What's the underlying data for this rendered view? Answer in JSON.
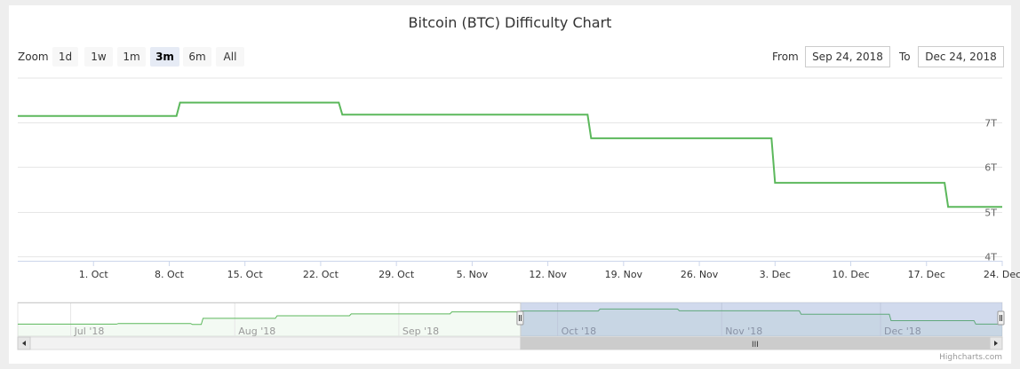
{
  "chart_data": {
    "type": "line",
    "title": "Bitcoin (BTC) Difficulty Chart",
    "xlabel": "",
    "ylabel": "",
    "y_unit": "T",
    "ylim": [
      3.9,
      8.0
    ],
    "y_ticks": [
      {
        "value": 4,
        "label": "4T"
      },
      {
        "value": 5,
        "label": "5T"
      },
      {
        "value": 6,
        "label": "6T"
      },
      {
        "value": 7,
        "label": "7T"
      }
    ],
    "x_range": [
      "2018-09-24",
      "2018-12-24"
    ],
    "x_ticks": [
      {
        "date": "2018-10-01",
        "label": "1. Oct"
      },
      {
        "date": "2018-10-08",
        "label": "8. Oct"
      },
      {
        "date": "2018-10-15",
        "label": "15. Oct"
      },
      {
        "date": "2018-10-22",
        "label": "22. Oct"
      },
      {
        "date": "2018-10-29",
        "label": "29. Oct"
      },
      {
        "date": "2018-11-05",
        "label": "5. Nov"
      },
      {
        "date": "2018-11-12",
        "label": "12. Nov"
      },
      {
        "date": "2018-11-19",
        "label": "19. Nov"
      },
      {
        "date": "2018-11-26",
        "label": "26. Nov"
      },
      {
        "date": "2018-12-03",
        "label": "3. Dec"
      },
      {
        "date": "2018-12-10",
        "label": "10. Dec"
      },
      {
        "date": "2018-12-17",
        "label": "17. Dec"
      },
      {
        "date": "2018-12-24",
        "label": "24. Dec"
      }
    ],
    "grid": true,
    "series": [
      {
        "color": "#5cb85c",
        "points": [
          {
            "x": "2018-09-24",
            "y": 7.15
          },
          {
            "x": "2018-10-09",
            "y": 7.45
          },
          {
            "x": "2018-10-24",
            "y": 7.18
          },
          {
            "x": "2018-11-16",
            "y": 6.65
          },
          {
            "x": "2018-12-03",
            "y": 5.65
          },
          {
            "x": "2018-12-19",
            "y": 5.11
          },
          {
            "x": "2018-12-24",
            "y": 5.11
          }
        ]
      }
    ],
    "navigator": {
      "x_range": [
        "2018-06-21",
        "2018-12-24"
      ],
      "selected_range": [
        "2018-09-24",
        "2018-12-24"
      ],
      "x_ticks": [
        {
          "date": "2018-07-01",
          "label": "Jul '18"
        },
        {
          "date": "2018-08-01",
          "label": "Aug '18"
        },
        {
          "date": "2018-09-01",
          "label": "Sep '18"
        },
        {
          "date": "2018-10-01",
          "label": "Oct '18"
        },
        {
          "date": "2018-11-01",
          "label": "Nov '18"
        },
        {
          "date": "2018-12-01",
          "label": "Dec '18"
        }
      ],
      "points": [
        {
          "x": "2018-06-21",
          "y": 5.1
        },
        {
          "x": "2018-07-10",
          "y": 5.2
        },
        {
          "x": "2018-07-24",
          "y": 5.05
        },
        {
          "x": "2018-07-26",
          "y": 6.0
        },
        {
          "x": "2018-08-09",
          "y": 6.4
        },
        {
          "x": "2018-08-23",
          "y": 6.7
        },
        {
          "x": "2018-09-11",
          "y": 7.0
        },
        {
          "x": "2018-09-24",
          "y": 7.15
        },
        {
          "x": "2018-10-09",
          "y": 7.45
        },
        {
          "x": "2018-10-24",
          "y": 7.18
        },
        {
          "x": "2018-11-16",
          "y": 6.65
        },
        {
          "x": "2018-12-03",
          "y": 5.65
        },
        {
          "x": "2018-12-19",
          "y": 5.11
        },
        {
          "x": "2018-12-24",
          "y": 5.11
        }
      ]
    }
  },
  "range_selector": {
    "zoom_label": "Zoom",
    "buttons": [
      {
        "label": "1d",
        "active": false
      },
      {
        "label": "1w",
        "active": false
      },
      {
        "label": "1m",
        "active": false
      },
      {
        "label": "3m",
        "active": true
      },
      {
        "label": "6m",
        "active": false
      },
      {
        "label": "All",
        "active": false
      }
    ],
    "from_label": "From",
    "from_value": "Sep 24, 2018",
    "to_label": "To",
    "to_value": "Dec 24, 2018"
  },
  "scrollbar": {
    "thumb_grip": "III"
  },
  "credits": "Highcharts.com"
}
